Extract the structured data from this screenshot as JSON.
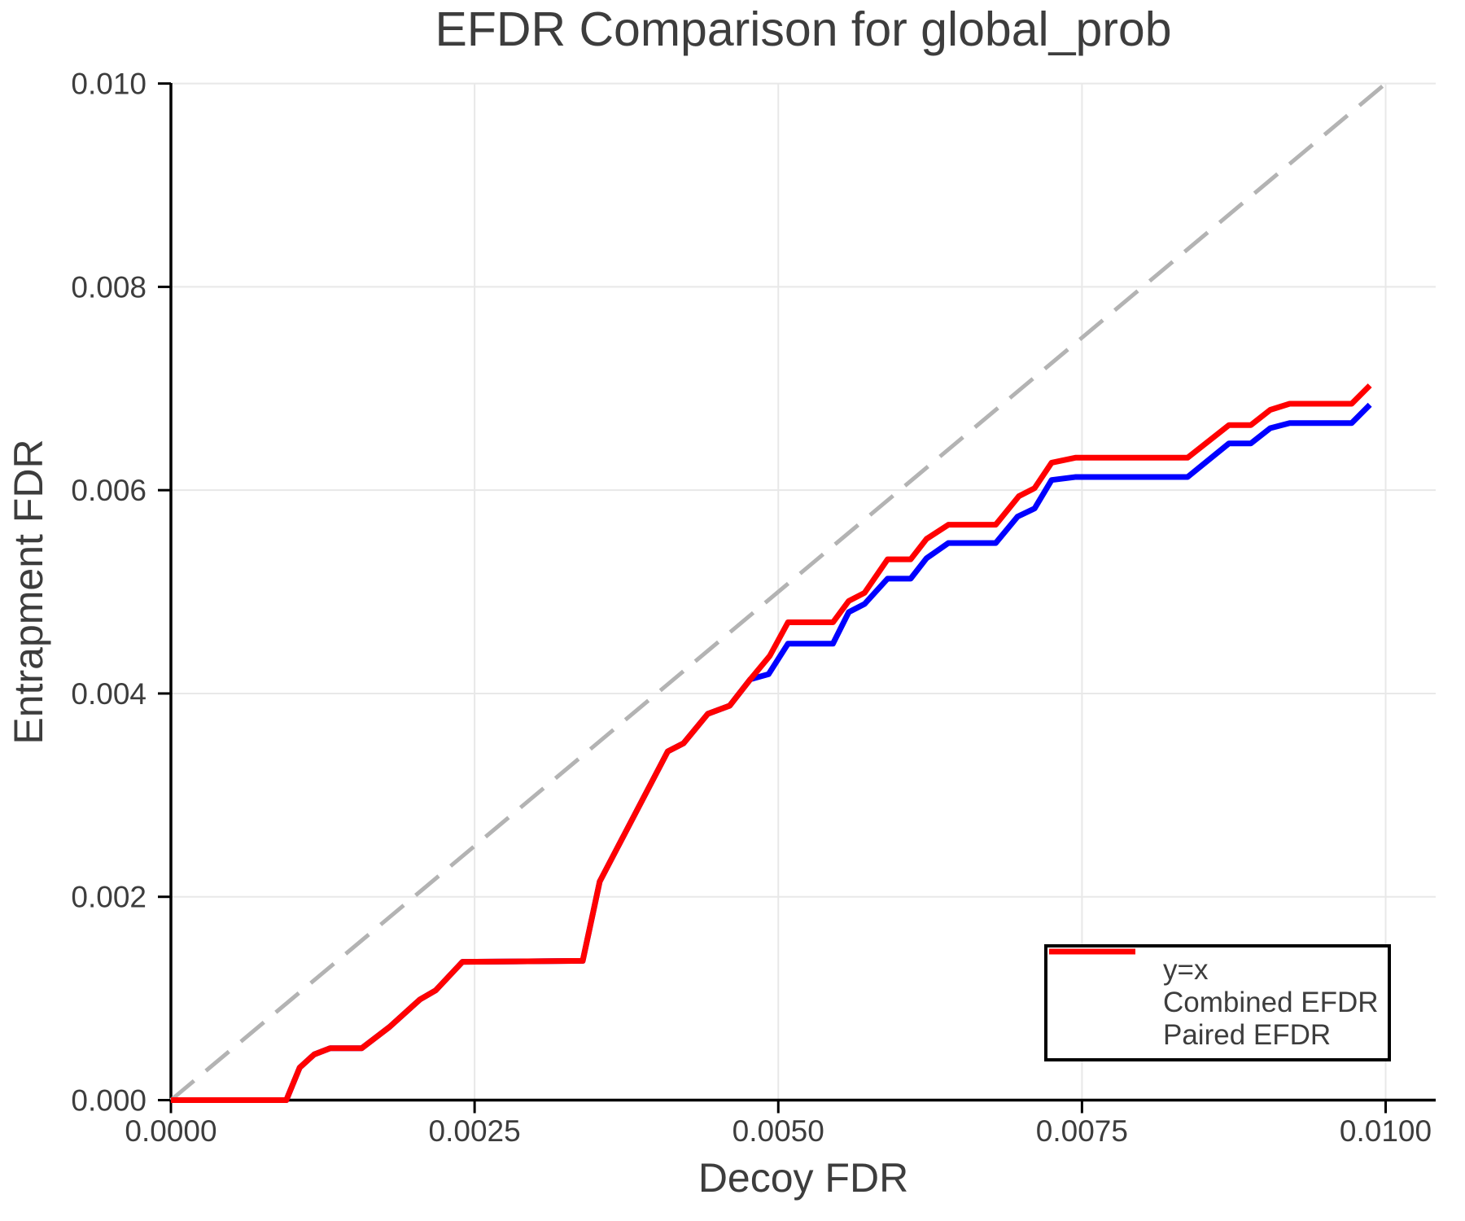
{
  "chart_data": {
    "type": "line",
    "title": "EFDR Comparison for global_prob",
    "xlabel": "Decoy FDR",
    "ylabel": "Entrapment FDR",
    "xlim": [
      0,
      0.010412
    ],
    "ylim": [
      0,
      0.010005
    ],
    "x_ticks": [
      0,
      0.0025,
      0.005,
      0.0075,
      0.01
    ],
    "x_tick_labels": [
      "0.0000",
      "0.0025",
      "0.0050",
      "0.0075",
      "0.0100"
    ],
    "y_ticks": [
      0,
      0.002,
      0.004,
      0.006,
      0.008,
      0.01
    ],
    "y_tick_labels": [
      "0.000",
      "0.002",
      "0.004",
      "0.006",
      "0.008",
      "0.010"
    ],
    "grid": true,
    "grid_color": "#e8e8e8",
    "axis_color": "#000000",
    "text_color": "#3d3d3d",
    "legend_position": "lower right",
    "series": [
      {
        "name": "y=x",
        "style": "dashed",
        "color": "#b3b3b3",
        "points": [
          [
            0,
            0
          ],
          [
            0.01,
            0.01
          ]
        ]
      },
      {
        "name": "Combined EFDR",
        "style": "solid",
        "color": "#0000ff",
        "points": [
          [
            0,
            0
          ],
          [
            0.00095,
            0
          ],
          [
            0.00106,
            0.00032
          ],
          [
            0.00118,
            0.00045
          ],
          [
            0.00131,
            0.00051
          ],
          [
            0.00157,
            0.00051
          ],
          [
            0.0018,
            0.00072
          ],
          [
            0.00205,
            0.00099
          ],
          [
            0.00218,
            0.00108
          ],
          [
            0.0024,
            0.00136
          ],
          [
            0.00339,
            0.00137
          ],
          [
            0.00353,
            0.00215
          ],
          [
            0.00409,
            0.00343
          ],
          [
            0.00422,
            0.00351
          ],
          [
            0.00442,
            0.0038
          ],
          [
            0.0046,
            0.00388
          ],
          [
            0.00477,
            0.00414
          ],
          [
            0.00492,
            0.00419
          ],
          [
            0.00508,
            0.00449
          ],
          [
            0.00545,
            0.00449
          ],
          [
            0.00558,
            0.0048
          ],
          [
            0.00571,
            0.00488
          ],
          [
            0.0059,
            0.00513
          ],
          [
            0.00609,
            0.00513
          ],
          [
            0.00622,
            0.00533
          ],
          [
            0.0064,
            0.00548
          ],
          [
            0.00679,
            0.00548
          ],
          [
            0.00697,
            0.00574
          ],
          [
            0.00711,
            0.00582
          ],
          [
            0.00725,
            0.0061
          ],
          [
            0.00745,
            0.00613
          ],
          [
            0.00837,
            0.00613
          ],
          [
            0.00871,
            0.00646
          ],
          [
            0.00889,
            0.00646
          ],
          [
            0.00905,
            0.00661
          ],
          [
            0.00921,
            0.00666
          ],
          [
            0.00972,
            0.00666
          ],
          [
            0.00987,
            0.00684
          ]
        ]
      },
      {
        "name": "Paired EFDR",
        "style": "solid",
        "color": "#ff0000",
        "points": [
          [
            0,
            0
          ],
          [
            0.00095,
            0
          ],
          [
            0.00106,
            0.00032
          ],
          [
            0.00118,
            0.00045
          ],
          [
            0.00131,
            0.00051
          ],
          [
            0.00157,
            0.00051
          ],
          [
            0.0018,
            0.00072
          ],
          [
            0.00205,
            0.00099
          ],
          [
            0.00218,
            0.00108
          ],
          [
            0.0024,
            0.00136
          ],
          [
            0.00339,
            0.00137
          ],
          [
            0.00353,
            0.00215
          ],
          [
            0.00409,
            0.00343
          ],
          [
            0.00422,
            0.00351
          ],
          [
            0.00442,
            0.0038
          ],
          [
            0.0046,
            0.00388
          ],
          [
            0.00477,
            0.00414
          ],
          [
            0.00493,
            0.00437
          ],
          [
            0.00508,
            0.0047
          ],
          [
            0.00545,
            0.0047
          ],
          [
            0.00558,
            0.00491
          ],
          [
            0.00571,
            0.00499
          ],
          [
            0.0059,
            0.00532
          ],
          [
            0.00609,
            0.00532
          ],
          [
            0.00622,
            0.00552
          ],
          [
            0.0064,
            0.00566
          ],
          [
            0.00679,
            0.00566
          ],
          [
            0.00698,
            0.00594
          ],
          [
            0.00711,
            0.00602
          ],
          [
            0.00725,
            0.00627
          ],
          [
            0.00745,
            0.00632
          ],
          [
            0.00837,
            0.00632
          ],
          [
            0.00871,
            0.00664
          ],
          [
            0.00889,
            0.00664
          ],
          [
            0.00905,
            0.00679
          ],
          [
            0.00921,
            0.00685
          ],
          [
            0.00972,
            0.00685
          ],
          [
            0.00987,
            0.00703
          ]
        ]
      }
    ]
  }
}
